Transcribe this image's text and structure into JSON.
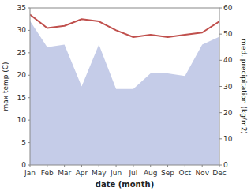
{
  "chart_data": {
    "type": "line",
    "xlabel": "date (month)",
    "ylabel": "max temp (C)",
    "y2label": "med. precipitation (kg/m2)",
    "categories": [
      "Jan",
      "Feb",
      "Mar",
      "Apr",
      "May",
      "Jun",
      "Jul",
      "Aug",
      "Sep",
      "Oct",
      "Nov",
      "Dec"
    ],
    "series": [
      {
        "type": "area",
        "axis": "y2",
        "color": "#c5cce8",
        "values": [
          55,
          45,
          46,
          30,
          46,
          29,
          29,
          35,
          35,
          34,
          46,
          49
        ]
      },
      {
        "type": "line",
        "color": "#c0504d",
        "values": [
          33.5,
          30.5,
          31.0,
          32.5,
          32.0,
          30.0,
          28.5,
          29.0,
          28.5,
          29.0,
          29.5,
          32.0
        ]
      }
    ],
    "ylim": [
      0,
      35
    ],
    "yticks": [
      0,
      5,
      10,
      15,
      20,
      25,
      30,
      35
    ],
    "y2lim": [
      0,
      60
    ],
    "y2ticks": [
      0,
      10,
      20,
      30,
      40,
      50,
      60
    ],
    "grid": false
  }
}
